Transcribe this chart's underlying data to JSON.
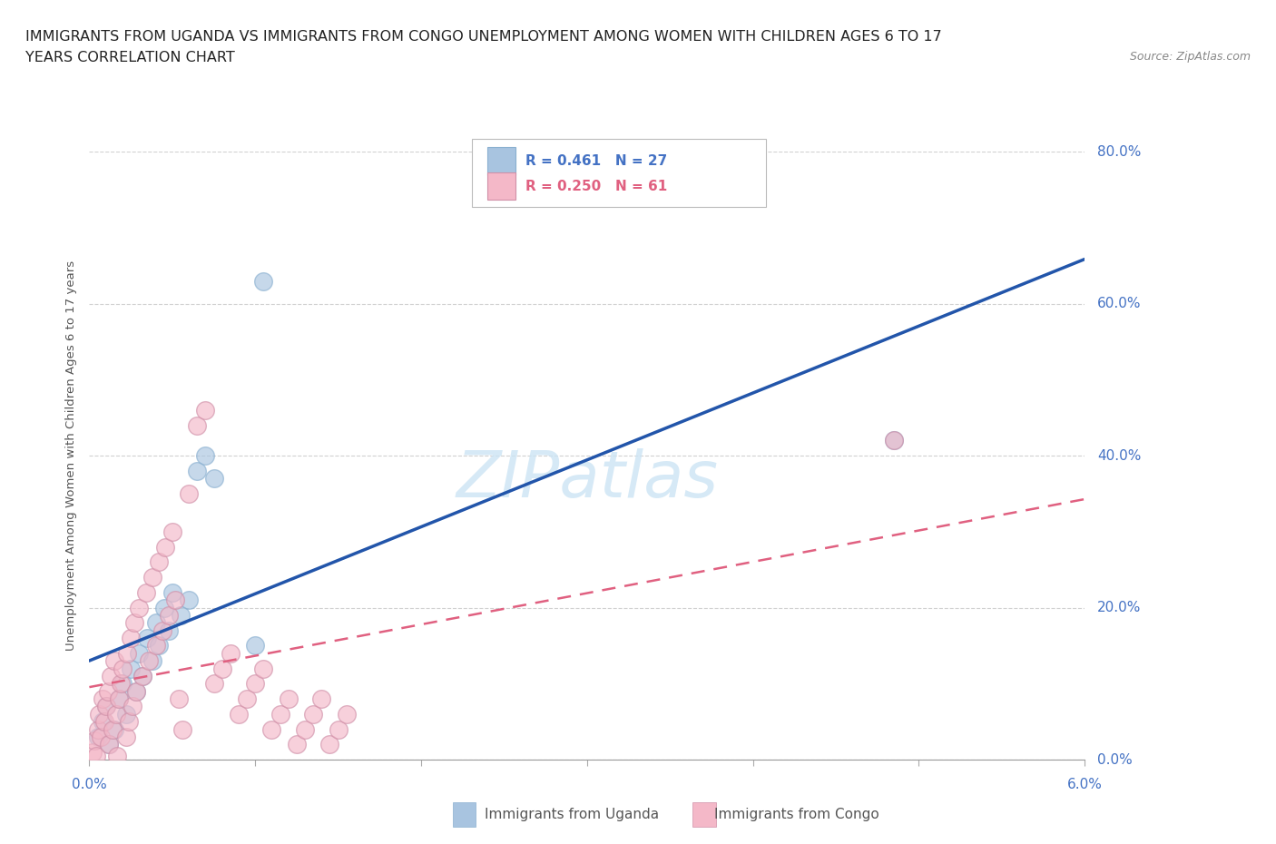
{
  "title_line1": "IMMIGRANTS FROM UGANDA VS IMMIGRANTS FROM CONGO UNEMPLOYMENT AMONG WOMEN WITH CHILDREN AGES 6 TO 17",
  "title_line2": "YEARS CORRELATION CHART",
  "source": "Source: ZipAtlas.com",
  "ylabel": "Unemployment Among Women with Children Ages 6 to 17 years",
  "xlim": [
    0.0,
    6.0
  ],
  "ylim": [
    0.0,
    80.0
  ],
  "ytick_labels": [
    "0.0%",
    "20.0%",
    "40.0%",
    "60.0%",
    "80.0%"
  ],
  "ytick_values": [
    0,
    20,
    40,
    60,
    80
  ],
  "xtick_values": [
    0,
    1,
    2,
    3,
    4,
    5,
    6
  ],
  "x_left_label": "0.0%",
  "x_right_label": "6.0%",
  "legend_uganda_r": "R = 0.461",
  "legend_uganda_n": "N = 27",
  "legend_congo_r": "R = 0.250",
  "legend_congo_n": "N = 61",
  "watermark": "ZIPatlas",
  "uganda_color": "#a8c4e0",
  "congo_color": "#f4b8c8",
  "uganda_line_color": "#2255aa",
  "congo_line_color": "#e06080",
  "bottom_legend_uganda": "Immigrants from Uganda",
  "bottom_legend_congo": "Immigrants from Congo",
  "uganda_points": [
    [
      0.05,
      3.0
    ],
    [
      0.08,
      5.0
    ],
    [
      0.1,
      7.0
    ],
    [
      0.12,
      2.0
    ],
    [
      0.15,
      4.0
    ],
    [
      0.18,
      8.0
    ],
    [
      0.2,
      10.0
    ],
    [
      0.22,
      6.0
    ],
    [
      0.25,
      12.0
    ],
    [
      0.28,
      9.0
    ],
    [
      0.3,
      14.0
    ],
    [
      0.32,
      11.0
    ],
    [
      0.35,
      16.0
    ],
    [
      0.38,
      13.0
    ],
    [
      0.4,
      18.0
    ],
    [
      0.42,
      15.0
    ],
    [
      0.45,
      20.0
    ],
    [
      0.48,
      17.0
    ],
    [
      0.5,
      22.0
    ],
    [
      0.55,
      19.0
    ],
    [
      0.6,
      21.0
    ],
    [
      0.65,
      38.0
    ],
    [
      0.7,
      40.0
    ],
    [
      0.75,
      37.0
    ],
    [
      1.05,
      63.0
    ],
    [
      4.85,
      42.0
    ],
    [
      1.0,
      15.0
    ]
  ],
  "congo_points": [
    [
      0.02,
      1.0
    ],
    [
      0.03,
      2.5
    ],
    [
      0.04,
      0.5
    ],
    [
      0.05,
      4.0
    ],
    [
      0.06,
      6.0
    ],
    [
      0.07,
      3.0
    ],
    [
      0.08,
      8.0
    ],
    [
      0.09,
      5.0
    ],
    [
      0.1,
      7.0
    ],
    [
      0.11,
      9.0
    ],
    [
      0.12,
      2.0
    ],
    [
      0.13,
      11.0
    ],
    [
      0.14,
      4.0
    ],
    [
      0.15,
      13.0
    ],
    [
      0.16,
      6.0
    ],
    [
      0.17,
      0.5
    ],
    [
      0.18,
      8.0
    ],
    [
      0.19,
      10.0
    ],
    [
      0.2,
      12.0
    ],
    [
      0.22,
      3.0
    ],
    [
      0.23,
      14.0
    ],
    [
      0.24,
      5.0
    ],
    [
      0.25,
      16.0
    ],
    [
      0.26,
      7.0
    ],
    [
      0.27,
      18.0
    ],
    [
      0.28,
      9.0
    ],
    [
      0.3,
      20.0
    ],
    [
      0.32,
      11.0
    ],
    [
      0.34,
      22.0
    ],
    [
      0.36,
      13.0
    ],
    [
      0.38,
      24.0
    ],
    [
      0.4,
      15.0
    ],
    [
      0.42,
      26.0
    ],
    [
      0.44,
      17.0
    ],
    [
      0.46,
      28.0
    ],
    [
      0.48,
      19.0
    ],
    [
      0.5,
      30.0
    ],
    [
      0.52,
      21.0
    ],
    [
      0.54,
      8.0
    ],
    [
      0.56,
      4.0
    ],
    [
      0.6,
      35.0
    ],
    [
      0.65,
      44.0
    ],
    [
      0.7,
      46.0
    ],
    [
      0.75,
      10.0
    ],
    [
      0.8,
      12.0
    ],
    [
      0.85,
      14.0
    ],
    [
      0.9,
      6.0
    ],
    [
      0.95,
      8.0
    ],
    [
      1.0,
      10.0
    ],
    [
      1.05,
      12.0
    ],
    [
      1.1,
      4.0
    ],
    [
      1.15,
      6.0
    ],
    [
      1.2,
      8.0
    ],
    [
      1.25,
      2.0
    ],
    [
      1.3,
      4.0
    ],
    [
      1.35,
      6.0
    ],
    [
      1.4,
      8.0
    ],
    [
      1.45,
      2.0
    ],
    [
      1.5,
      4.0
    ],
    [
      1.55,
      6.0
    ],
    [
      4.85,
      42.0
    ]
  ]
}
